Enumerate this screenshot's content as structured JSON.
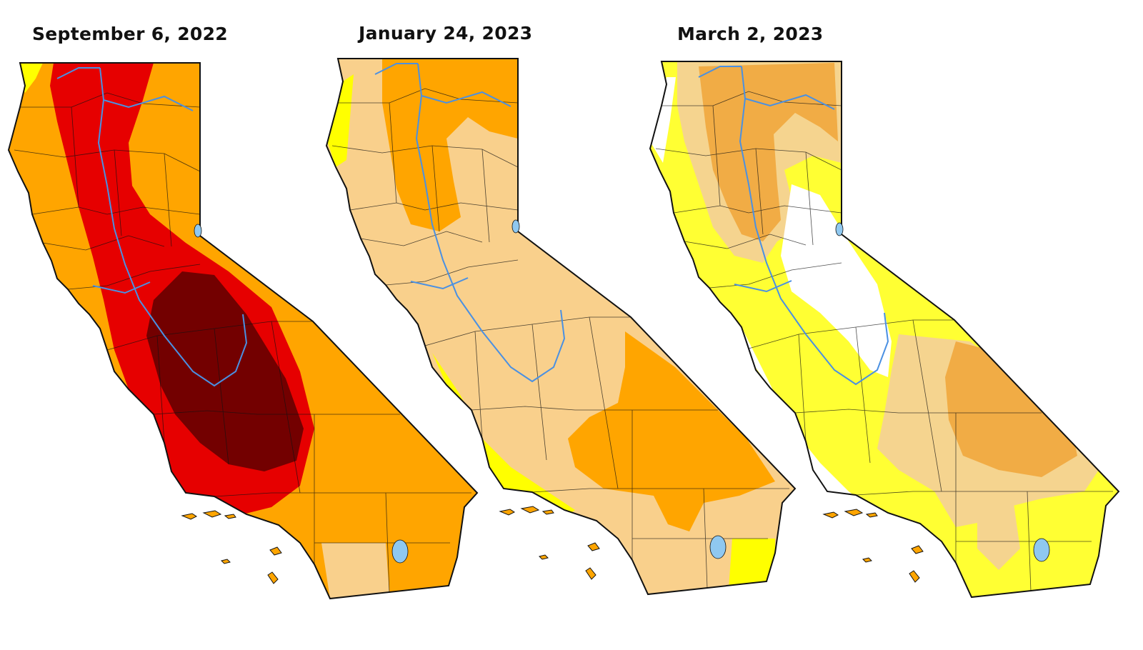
{
  "panels": [
    {
      "date": "September 6, 2022",
      "base_color": "#ffa500",
      "colors": {
        "lightest": "#ffff00",
        "light": "#f9d08c",
        "moderate": "#ffa500",
        "severe": "#e60000",
        "extreme": "#730000"
      }
    },
    {
      "date": "January 24, 2023",
      "base_color": "#f9d08c",
      "colors": {
        "lightest": "#ffff00",
        "light": "#f9d08c",
        "moderate": "#ffa500"
      }
    },
    {
      "date": "March 2, 2023",
      "base_color": "#ffff33",
      "colors": {
        "none": "#ffffff",
        "lightest": "#ffff33",
        "light": "#f5d48f",
        "moderate": "#f1ac45"
      }
    }
  ],
  "colors": {
    "outline": "#111111",
    "river": "#4a90e2",
    "lake": "#8fc8f0"
  }
}
